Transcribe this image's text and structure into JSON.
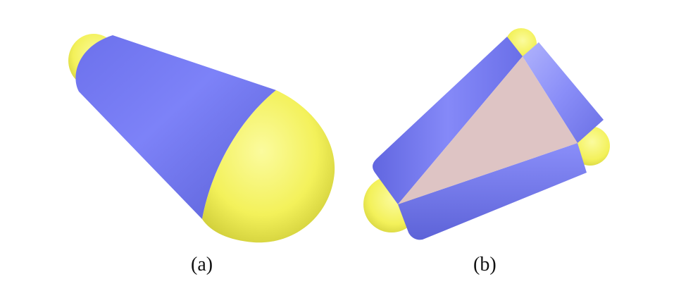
{
  "figure": {
    "panels": [
      {
        "caption": "(a)",
        "shape": "cone-capsule"
      },
      {
        "caption": "(b)",
        "shape": "rounded-triangle-slab"
      }
    ],
    "colors": {
      "blue": "#7479f4",
      "blue_dark": "#4f55c8",
      "blue_light": "#9ea2fb",
      "yellow": "#f3f15a",
      "yellow_dark": "#c9c733",
      "yellow_light": "#fbfb9e",
      "pink_face": "#dec4c4"
    }
  }
}
